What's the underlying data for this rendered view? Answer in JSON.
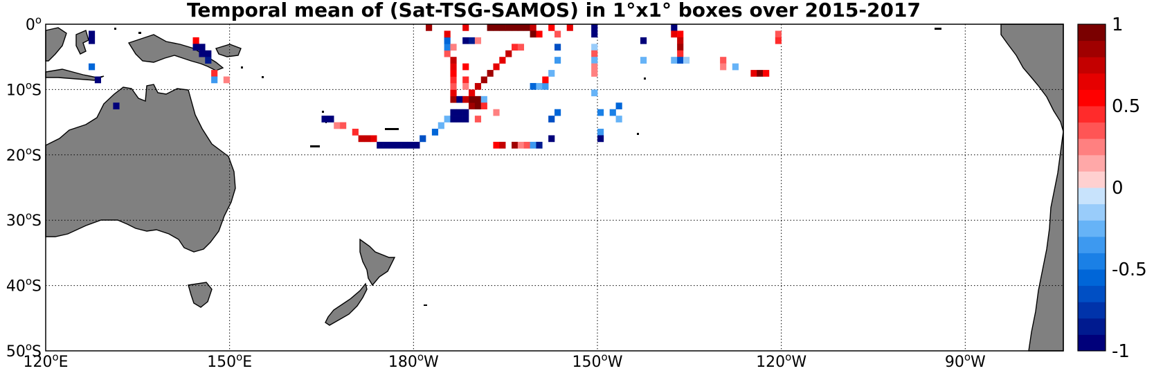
{
  "title": "Temporal mean of (Sat-TSG-SAMOS) in 1°x1° boxes over 2015-2017",
  "map": {
    "lon_range": [
      120,
      286
    ],
    "lat_range": [
      -50,
      0
    ],
    "lon_ticks": [
      {
        "lon": 120,
        "label": "120°E"
      },
      {
        "lon": 150,
        "label": "150°E"
      },
      {
        "lon": 180,
        "label": "180°W"
      },
      {
        "lon": 210,
        "label": "150°W"
      },
      {
        "lon": 240,
        "label": "120°W"
      },
      {
        "lon": 270,
        "label": "90°W"
      }
    ],
    "lat_ticks": [
      {
        "lat": 0,
        "label": "0°"
      },
      {
        "lat": -10,
        "label": "10°S"
      },
      {
        "lat": -20,
        "label": "20°S"
      },
      {
        "lat": -30,
        "label": "30°S"
      },
      {
        "lat": -40,
        "label": "40°S"
      },
      {
        "lat": -50,
        "label": "50°S"
      }
    ],
    "land_color": "#808080",
    "grid": true
  },
  "colorbar": {
    "range": [
      -1,
      1
    ],
    "levels": 20,
    "colors": [
      "#00007a",
      "#001a8f",
      "#0033aa",
      "#004fc4",
      "#0066d8",
      "#1a80e6",
      "#3d99f0",
      "#66b3f7",
      "#99ccfa",
      "#c8e3fc",
      "#ffd0d0",
      "#ffa8a8",
      "#ff8080",
      "#ff5555",
      "#ff2b2b",
      "#ff0000",
      "#e60000",
      "#c40000",
      "#a00000",
      "#7a0000"
    ],
    "labels": [
      {
        "value": 1,
        "label": "1"
      },
      {
        "value": 0.5,
        "label": "0.5"
      },
      {
        "value": 0,
        "label": "0"
      },
      {
        "value": -0.5,
        "label": "-0.5"
      },
      {
        "value": -1,
        "label": "-1"
      }
    ]
  },
  "chart_data": {
    "type": "heatmap",
    "title": "Temporal mean of (Sat-TSG-SAMOS) in 1°x1° boxes over 2015-2017",
    "xlabel": "",
    "ylabel": "",
    "x_range_lon": [
      120,
      286
    ],
    "y_range_lat": [
      -50,
      0
    ],
    "value_range": [
      -1,
      1
    ],
    "cell_size_deg": 1,
    "cells": [
      {
        "lon": 127,
        "lat": -1,
        "value": -1.0
      },
      {
        "lon": 127,
        "lat": -2,
        "value": -1.0
      },
      {
        "lon": 127,
        "lat": -6,
        "value": -0.6
      },
      {
        "lon": 128,
        "lat": -8,
        "value": -1.0
      },
      {
        "lon": 131,
        "lat": -12,
        "value": -1.0
      },
      {
        "lon": 144,
        "lat": -2,
        "value": 0.5
      },
      {
        "lon": 144,
        "lat": -3,
        "value": -1.0
      },
      {
        "lon": 145,
        "lat": -3,
        "value": -1.0
      },
      {
        "lon": 145,
        "lat": -4,
        "value": -1.0
      },
      {
        "lon": 146,
        "lat": -4,
        "value": -1.0
      },
      {
        "lon": 146,
        "lat": -5,
        "value": -0.8
      },
      {
        "lon": 147,
        "lat": -7,
        "value": 0.4
      },
      {
        "lon": 147,
        "lat": -8,
        "value": -0.4
      },
      {
        "lon": 149,
        "lat": -8,
        "value": 0.2
      },
      {
        "lon": 165,
        "lat": -14,
        "value": -1.0
      },
      {
        "lon": 166,
        "lat": -14,
        "value": -1.0
      },
      {
        "lon": 167,
        "lat": -15,
        "value": 0.2
      },
      {
        "lon": 168,
        "lat": -15,
        "value": 0.3
      },
      {
        "lon": 170,
        "lat": -16,
        "value": 0.4
      },
      {
        "lon": 171,
        "lat": -17,
        "value": 0.7
      },
      {
        "lon": 172,
        "lat": -17,
        "value": 0.7
      },
      {
        "lon": 173,
        "lat": -17,
        "value": 0.6
      },
      {
        "lon": 174,
        "lat": -18,
        "value": -1.0
      },
      {
        "lon": 175,
        "lat": -18,
        "value": -1.0
      },
      {
        "lon": 176,
        "lat": -18,
        "value": -1.0
      },
      {
        "lon": 177,
        "lat": -18,
        "value": -1.0
      },
      {
        "lon": 178,
        "lat": -18,
        "value": -1.0
      },
      {
        "lon": 179,
        "lat": -18,
        "value": -1.0
      },
      {
        "lon": 180,
        "lat": -18,
        "value": -1.0
      },
      {
        "lon": 181,
        "lat": -17,
        "value": -0.7
      },
      {
        "lon": 183,
        "lat": -16,
        "value": -0.6
      },
      {
        "lon": 184,
        "lat": -15,
        "value": -0.3
      },
      {
        "lon": 185,
        "lat": -14,
        "value": -0.3
      },
      {
        "lon": 186,
        "lat": -13,
        "value": -1.0
      },
      {
        "lon": 186,
        "lat": -14,
        "value": -1.0
      },
      {
        "lon": 187,
        "lat": -13,
        "value": -1.0
      },
      {
        "lon": 187,
        "lat": -14,
        "value": -1.0
      },
      {
        "lon": 188,
        "lat": -13,
        "value": -1.0
      },
      {
        "lon": 188,
        "lat": -14,
        "value": -1.0
      },
      {
        "lon": 189,
        "lat": -12,
        "value": 0.8
      },
      {
        "lon": 189,
        "lat": -11,
        "value": 0.9
      },
      {
        "lon": 190,
        "lat": -11,
        "value": 0.9
      },
      {
        "lon": 190,
        "lat": -12,
        "value": 0.9
      },
      {
        "lon": 186,
        "lat": -11,
        "value": 0.8
      },
      {
        "lon": 187,
        "lat": -11,
        "value": -1.0
      },
      {
        "lon": 188,
        "lat": -11,
        "value": 0.7
      },
      {
        "lon": 186,
        "lat": -10,
        "value": 0.6
      },
      {
        "lon": 186,
        "lat": -9,
        "value": 0.3
      },
      {
        "lon": 186,
        "lat": -8,
        "value": 0.4
      },
      {
        "lon": 186,
        "lat": -7,
        "value": 0.5
      },
      {
        "lon": 186,
        "lat": -6,
        "value": 0.6
      },
      {
        "lon": 186,
        "lat": -5,
        "value": 0.7
      },
      {
        "lon": 185,
        "lat": -4,
        "value": 0.3
      },
      {
        "lon": 185,
        "lat": -3,
        "value": -0.5
      },
      {
        "lon": 185,
        "lat": -2,
        "value": -0.6
      },
      {
        "lon": 185,
        "lat": -1,
        "value": 0.6
      },
      {
        "lon": 186,
        "lat": -3,
        "value": 0.2
      },
      {
        "lon": 188,
        "lat": -2,
        "value": -1.0
      },
      {
        "lon": 189,
        "lat": -2,
        "value": -0.8
      },
      {
        "lon": 190,
        "lat": -2,
        "value": 0.2
      },
      {
        "lon": 188,
        "lat": -6,
        "value": 0.5
      },
      {
        "lon": 188,
        "lat": -8,
        "value": 0.4
      },
      {
        "lon": 188,
        "lat": -9,
        "value": 0.2
      },
      {
        "lon": 189,
        "lat": -10,
        "value": 0.6
      },
      {
        "lon": 190,
        "lat": -9,
        "value": 0.7
      },
      {
        "lon": 191,
        "lat": -8,
        "value": 0.8
      },
      {
        "lon": 192,
        "lat": -7,
        "value": 0.8
      },
      {
        "lon": 193,
        "lat": -6,
        "value": 0.6
      },
      {
        "lon": 194,
        "lat": -5,
        "value": 0.6
      },
      {
        "lon": 195,
        "lat": -4,
        "value": 0.7
      },
      {
        "lon": 196,
        "lat": -3,
        "value": 0.4
      },
      {
        "lon": 197,
        "lat": -3,
        "value": 0.3
      },
      {
        "lon": 191,
        "lat": -11,
        "value": -0.3
      },
      {
        "lon": 191,
        "lat": -12,
        "value": 0.4
      },
      {
        "lon": 190,
        "lat": -14,
        "value": 0.3
      },
      {
        "lon": 193,
        "lat": -13,
        "value": 0.2
      },
      {
        "lon": 193,
        "lat": -18,
        "value": 0.5
      },
      {
        "lon": 194,
        "lat": -18,
        "value": 0.7
      },
      {
        "lon": 196,
        "lat": -18,
        "value": 0.8
      },
      {
        "lon": 197,
        "lat": -18,
        "value": 0.2
      },
      {
        "lon": 198,
        "lat": -18,
        "value": 0.3
      },
      {
        "lon": 199,
        "lat": -18,
        "value": -0.4
      },
      {
        "lon": 200,
        "lat": -18,
        "value": -0.8
      },
      {
        "lon": 202,
        "lat": -17,
        "value": -1.0
      },
      {
        "lon": 202,
        "lat": -14,
        "value": -0.7
      },
      {
        "lon": 203,
        "lat": -13,
        "value": -0.6
      },
      {
        "lon": 199,
        "lat": -9,
        "value": -0.6
      },
      {
        "lon": 200,
        "lat": -9,
        "value": -0.3
      },
      {
        "lon": 201,
        "lat": -9,
        "value": -0.4
      },
      {
        "lon": 201,
        "lat": -8,
        "value": 0.5
      },
      {
        "lon": 202,
        "lat": -7,
        "value": -0.3
      },
      {
        "lon": 203,
        "lat": -5,
        "value": -0.4
      },
      {
        "lon": 203,
        "lat": -3,
        "value": -0.7
      },
      {
        "lon": 203,
        "lat": -1,
        "value": 0.3
      },
      {
        "lon": 192,
        "lat": 0,
        "value": 0.9
      },
      {
        "lon": 193,
        "lat": 0,
        "value": 0.9
      },
      {
        "lon": 194,
        "lat": 0,
        "value": 0.9
      },
      {
        "lon": 195,
        "lat": 0,
        "value": 0.9
      },
      {
        "lon": 196,
        "lat": 0,
        "value": 0.9
      },
      {
        "lon": 197,
        "lat": 0,
        "value": 0.9
      },
      {
        "lon": 198,
        "lat": 0,
        "value": 0.9
      },
      {
        "lon": 199,
        "lat": 0,
        "value": 0.7
      },
      {
        "lon": 199,
        "lat": -1,
        "value": 1.0
      },
      {
        "lon": 200,
        "lat": -1,
        "value": 0.5
      },
      {
        "lon": 182,
        "lat": 0,
        "value": 0.8
      },
      {
        "lon": 188,
        "lat": 0,
        "value": 0.6
      },
      {
        "lon": 202,
        "lat": 0,
        "value": 0.5
      },
      {
        "lon": 205,
        "lat": 0,
        "value": 0.6
      },
      {
        "lon": 209,
        "lat": 0,
        "value": -1.0
      },
      {
        "lon": 209,
        "lat": -1,
        "value": -0.9
      },
      {
        "lon": 209,
        "lat": -3,
        "value": -0.2
      },
      {
        "lon": 209,
        "lat": -4,
        "value": 0.3
      },
      {
        "lon": 209,
        "lat": -5,
        "value": -0.3
      },
      {
        "lon": 209,
        "lat": -6,
        "value": 0.2
      },
      {
        "lon": 209,
        "lat": -7,
        "value": 0.2
      },
      {
        "lon": 209,
        "lat": -10,
        "value": -0.3
      },
      {
        "lon": 210,
        "lat": -13,
        "value": -0.5
      },
      {
        "lon": 210,
        "lat": -16,
        "value": -0.4
      },
      {
        "lon": 210,
        "lat": -17,
        "value": -1.0
      },
      {
        "lon": 212,
        "lat": -13,
        "value": -0.5
      },
      {
        "lon": 213,
        "lat": -12,
        "value": -0.6
      },
      {
        "lon": 213,
        "lat": -14,
        "value": -0.3
      },
      {
        "lon": 217,
        "lat": -2,
        "value": -0.9
      },
      {
        "lon": 217,
        "lat": -5,
        "value": -0.3
      },
      {
        "lon": 222,
        "lat": 0,
        "value": -1.0
      },
      {
        "lon": 222,
        "lat": -1,
        "value": 0.6
      },
      {
        "lon": 223,
        "lat": -1,
        "value": 0.5
      },
      {
        "lon": 223,
        "lat": -2,
        "value": 0.7
      },
      {
        "lon": 223,
        "lat": -3,
        "value": 0.8
      },
      {
        "lon": 223,
        "lat": -4,
        "value": 0.4
      },
      {
        "lon": 222,
        "lat": -5,
        "value": -0.3
      },
      {
        "lon": 223,
        "lat": -5,
        "value": -0.7
      },
      {
        "lon": 224,
        "lat": -5,
        "value": -0.2
      },
      {
        "lon": 230,
        "lat": -5,
        "value": 0.3
      },
      {
        "lon": 230,
        "lat": -6,
        "value": 0.2
      },
      {
        "lon": 232,
        "lat": -6,
        "value": -0.3
      },
      {
        "lon": 235,
        "lat": -7,
        "value": 0.6
      },
      {
        "lon": 236,
        "lat": -7,
        "value": 0.9
      },
      {
        "lon": 237,
        "lat": -7,
        "value": 0.5
      },
      {
        "lon": 239,
        "lat": -1,
        "value": 0.3
      },
      {
        "lon": 239,
        "lat": -2,
        "value": 0.4
      }
    ]
  }
}
